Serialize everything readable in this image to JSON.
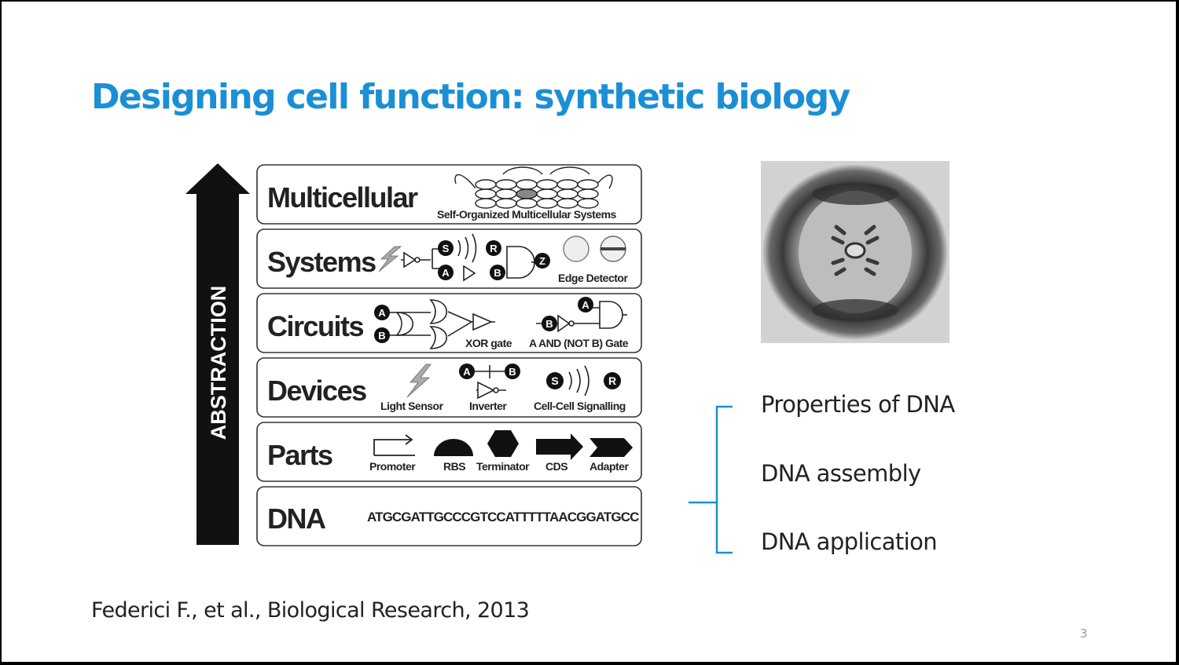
{
  "slide": {
    "title": "Designing cell function: synthetic biology",
    "page_number": "3",
    "citation": "Federici F., et al.,  Biological Research, 2013"
  },
  "figure": {
    "arrow_label": "ABSTRACTION",
    "levels": [
      {
        "name": "Multicellular",
        "captions": [
          "Self-Organized Multicellular Systems"
        ]
      },
      {
        "name": "Systems",
        "captions": [
          "Edge Detector"
        ]
      },
      {
        "name": "Circuits",
        "captions": [
          "XOR gate",
          "A AND (NOT B) Gate"
        ]
      },
      {
        "name": "Devices",
        "captions": [
          "Light Sensor",
          "Inverter",
          "Cell-Cell Signalling"
        ]
      },
      {
        "name": "Parts",
        "captions": [
          "Promoter",
          "RBS",
          "Terminator",
          "CDS",
          "Adapter"
        ]
      },
      {
        "name": "DNA",
        "captions": [
          "ATGCGATTGCCCGTCCATTTTTAACGGATGCC"
        ]
      }
    ],
    "node_labels": {
      "s": "S",
      "r": "R",
      "a": "A",
      "b": "B",
      "z": "Z"
    }
  },
  "bullets": [
    "Properties of DNA",
    "DNA assembly",
    "DNA application"
  ],
  "colors": {
    "title": "#1b8fd6",
    "brace": "#1b8fd6",
    "text": "#222222"
  }
}
